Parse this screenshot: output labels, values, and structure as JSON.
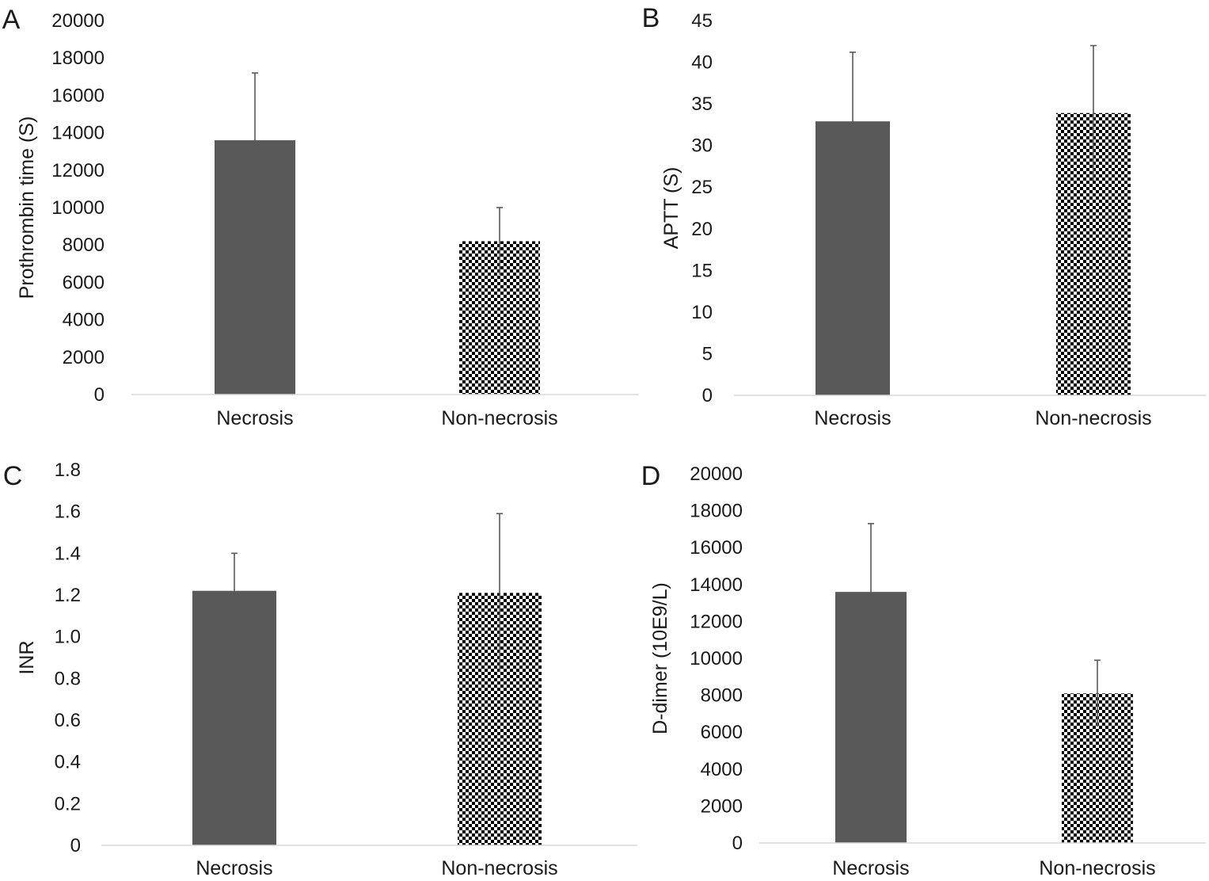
{
  "figure": {
    "colors": {
      "background": "#ffffff",
      "bar_solid": "#595959",
      "bar_checker_dark": "#000000",
      "bar_checker_light": "#ffffff",
      "axis_line": "#d9d9d9",
      "error_bar": "#595959",
      "text": "#1a1a1a"
    }
  },
  "chart_data": [
    {
      "panel": "A",
      "type": "bar",
      "categories": [
        "Necrosis",
        "Non-necrosis"
      ],
      "series": [
        {
          "values": [
            13600,
            8200
          ],
          "error_upper": [
            3600,
            1800
          ],
          "error_lower": [
            3600,
            1800
          ],
          "fills": [
            "solid",
            "checker"
          ]
        }
      ],
      "title": "",
      "xlabel": "",
      "ylabel": "Prothrombin time (S)",
      "ylim": [
        0,
        20000
      ],
      "yticks": [
        "0",
        "2000",
        "4000",
        "6000",
        "8000",
        "10000",
        "12000",
        "14000",
        "16000",
        "18000",
        "20000"
      ],
      "grid": false
    },
    {
      "panel": "B",
      "type": "bar",
      "categories": [
        "Necrosis",
        "Non-necrosis"
      ],
      "series": [
        {
          "values": [
            32.9,
            33.9
          ],
          "error_upper": [
            8.3,
            8.1
          ],
          "error_lower": [
            8.3,
            8.1
          ],
          "fills": [
            "solid",
            "checker"
          ]
        }
      ],
      "title": "",
      "xlabel": "",
      "ylabel": "APTT (S)",
      "ylim": [
        0,
        45
      ],
      "yticks": [
        "0",
        "5",
        "10",
        "15",
        "20",
        "25",
        "30",
        "35",
        "40",
        "45"
      ],
      "grid": false
    },
    {
      "panel": "C",
      "type": "bar",
      "categories": [
        "Necrosis",
        "Non-necrosis"
      ],
      "series": [
        {
          "values": [
            1.22,
            1.21
          ],
          "error_upper": [
            0.18,
            0.38
          ],
          "error_lower": [
            0.18,
            0.38
          ],
          "fills": [
            "solid",
            "checker"
          ]
        }
      ],
      "title": "",
      "xlabel": "",
      "ylabel": "INR",
      "ylim": [
        0,
        1.8
      ],
      "yticks": [
        "0",
        "0.2",
        "0.4",
        "0.6",
        "0.8",
        "1.0",
        "1.2",
        "1.4",
        "1.6",
        "1.8"
      ],
      "grid": false
    },
    {
      "panel": "D",
      "type": "bar",
      "categories": [
        "Necrosis",
        "Non-necrosis"
      ],
      "series": [
        {
          "values": [
            13600,
            8100
          ],
          "error_upper": [
            3700,
            1800
          ],
          "error_lower": [
            3700,
            1800
          ],
          "fills": [
            "solid",
            "checker"
          ]
        }
      ],
      "title": "",
      "xlabel": "",
      "ylabel": "D-dimer (10E9/L)",
      "ylim": [
        0,
        20000
      ],
      "yticks": [
        "0",
        "2000",
        "4000",
        "6000",
        "8000",
        "10000",
        "12000",
        "14000",
        "16000",
        "18000",
        "20000"
      ],
      "grid": false
    }
  ]
}
